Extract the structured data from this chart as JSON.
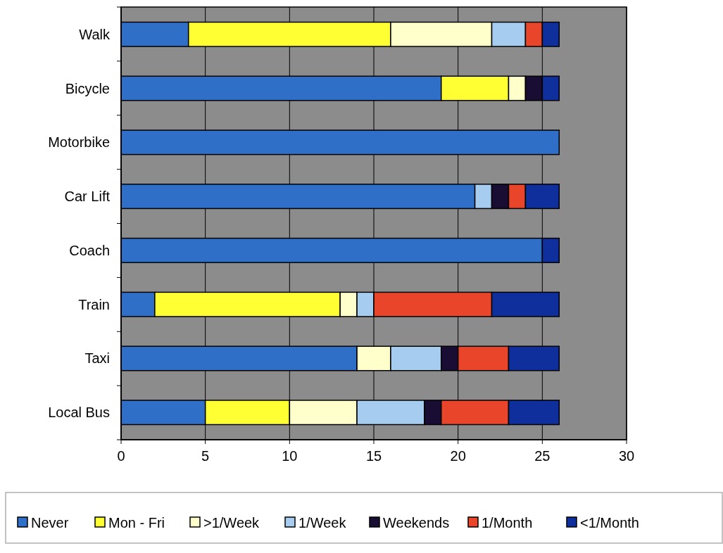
{
  "chart_data": {
    "type": "bar",
    "orientation": "horizontal",
    "stacked": true,
    "categories": [
      "Walk",
      "Bicycle",
      "Motorbike",
      "Car Lift",
      "Coach",
      "Train",
      "Taxi",
      "Local Bus"
    ],
    "series": [
      {
        "name": "Never",
        "color": "#2f6fc8",
        "values": [
          4,
          19,
          26,
          21,
          25,
          2,
          14,
          5
        ]
      },
      {
        "name": "Mon - Fri",
        "color": "#ffff33",
        "values": [
          12,
          4,
          0,
          0,
          0,
          11,
          0,
          5
        ]
      },
      {
        "name": ">1/Week",
        "color": "#ffffcc",
        "values": [
          6,
          1,
          0,
          0,
          0,
          1,
          2,
          4
        ]
      },
      {
        "name": "1/Week",
        "color": "#a6cdf0",
        "values": [
          2,
          0,
          0,
          1,
          0,
          1,
          3,
          4
        ]
      },
      {
        "name": "Weekends",
        "color": "#1a0d33",
        "values": [
          0,
          1,
          0,
          1,
          0,
          0,
          1,
          1
        ]
      },
      {
        "name": "1/Month",
        "color": "#e8452a",
        "values": [
          1,
          0,
          0,
          1,
          0,
          7,
          3,
          4
        ]
      },
      {
        "name": "<1/Month",
        "color": "#0f2f9c",
        "values": [
          1,
          1,
          0,
          2,
          1,
          4,
          3,
          3
        ]
      }
    ],
    "xlim": [
      0,
      30
    ],
    "xticks": [
      0,
      5,
      10,
      15,
      20,
      25,
      30
    ],
    "grid": "x",
    "legend": "bottom"
  }
}
